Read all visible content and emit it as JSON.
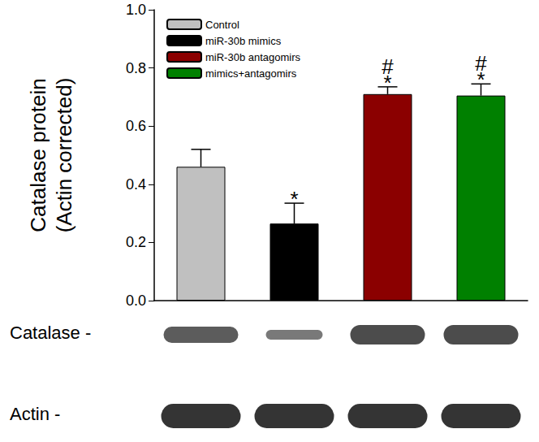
{
  "chart_data": {
    "type": "bar",
    "y_label": "Catalase protein\n(Actin corrected)",
    "categories": [
      null,
      null,
      null,
      null
    ],
    "series": [
      {
        "name": "Control",
        "color": "#c0c0c0",
        "values": [
          0.46,
          null,
          null,
          null
        ],
        "errors": [
          0.06,
          null,
          null,
          null
        ]
      },
      {
        "name": "miR-30b mimics",
        "color": "#000000",
        "values": [
          null,
          0.265,
          null,
          null
        ],
        "errors": [
          null,
          0.07,
          null,
          null
        ],
        "annotation": [
          "*"
        ]
      },
      {
        "name": "miR-30b antagomirs",
        "color": "#8b0000",
        "values": [
          null,
          null,
          0.71,
          null
        ],
        "errors": [
          null,
          null,
          0.025,
          null
        ],
        "annotation": [
          "#",
          "*"
        ]
      },
      {
        "name": "mimics+antagomirs",
        "color": "#008000",
        "values": [
          null,
          null,
          null,
          0.705
        ],
        "errors": [
          null,
          null,
          null,
          0.04
        ],
        "annotation": [
          "#",
          "*"
        ]
      }
    ],
    "ylim": [
      0,
      1
    ],
    "yticks": [
      {
        "value": 0,
        "label": "0.0"
      },
      0.2,
      0.4,
      0.6,
      0.8,
      {
        "value": 1,
        "label": "1.0"
      }
    ],
    "grid": false,
    "legend": "upper left"
  },
  "blot": {
    "rows": [
      "Catalase -",
      "Actin -"
    ]
  }
}
